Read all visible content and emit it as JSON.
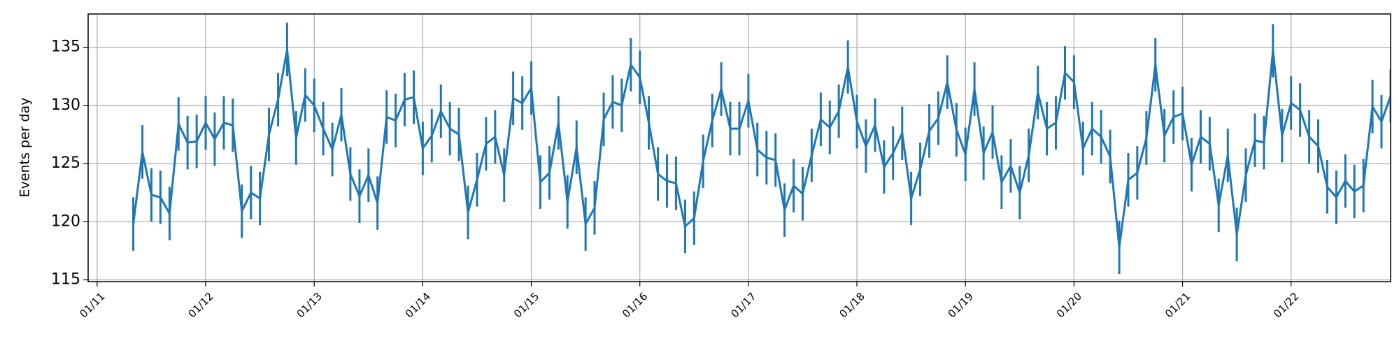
{
  "chart_data": {
    "type": "line",
    "y_label": "Events per day",
    "color": "#1f77b4",
    "grid": true,
    "x": [
      11.333,
      11.417,
      11.5,
      11.583,
      11.667,
      11.75,
      11.833,
      11.917,
      12,
      12.083,
      12.167,
      12.25,
      12.333,
      12.417,
      12.5,
      12.583,
      12.667,
      12.75,
      12.833,
      12.917,
      13,
      13.083,
      13.167,
      13.25,
      13.333,
      13.417,
      13.5,
      13.583,
      13.667,
      13.75,
      13.833,
      13.917,
      14,
      14.083,
      14.167,
      14.25,
      14.333,
      14.417,
      14.5,
      14.583,
      14.667,
      14.75,
      14.833,
      14.917,
      15,
      15.083,
      15.167,
      15.25,
      15.333,
      15.417,
      15.5,
      15.583,
      15.667,
      15.75,
      15.833,
      15.917,
      16,
      16.083,
      16.167,
      16.25,
      16.333,
      16.417,
      16.5,
      16.583,
      16.667,
      16.75,
      16.833,
      16.917,
      17,
      17.083,
      17.167,
      17.25,
      17.333,
      17.417,
      17.5,
      17.583,
      17.667,
      17.75,
      17.833,
      17.917,
      18,
      18.083,
      18.167,
      18.25,
      18.333,
      18.417,
      18.5,
      18.583,
      18.667,
      18.75,
      18.833,
      18.917,
      19,
      19.083,
      19.167,
      19.25,
      19.333,
      19.417,
      19.5,
      19.583,
      19.667,
      19.75,
      19.833,
      19.917,
      20,
      20.083,
      20.167,
      20.25,
      20.333,
      20.417,
      20.5,
      20.583,
      20.667,
      20.75,
      20.833,
      20.917,
      21,
      21.083,
      21.167,
      21.25,
      21.333,
      21.417,
      21.5,
      21.583,
      21.667,
      21.75,
      21.833,
      21.917,
      22,
      22.083,
      22.167,
      22.25,
      22.333,
      22.417,
      22.5,
      22.583,
      22.667,
      22.75,
      22.833,
      22.917
    ],
    "values": [
      119.8,
      126,
      122.3,
      122.1,
      120.7,
      128.4,
      126.8,
      126.9,
      128.5,
      127.1,
      128.5,
      128.3,
      120.9,
      122.5,
      122.0,
      127.5,
      130.5,
      134.8,
      127.2,
      130.9,
      130.0,
      128.0,
      126.2,
      129.2,
      124.1,
      122.2,
      124.0,
      121.6,
      129.0,
      128.7,
      130.5,
      130.7,
      126.3,
      127.4,
      129.5,
      128.0,
      127.5,
      120.8,
      123.6,
      126.7,
      127.3,
      124.0,
      130.6,
      130.2,
      131.5,
      123.4,
      124.2,
      128.5,
      121.7,
      126.4,
      119.8,
      121.2,
      128.8,
      130.3,
      130.0,
      133.5,
      132.4,
      128.5,
      124.1,
      123.5,
      123.3,
      119.6,
      120.3,
      125.2,
      128.7,
      131.4,
      128.0,
      128.0,
      130.4,
      126.2,
      125.5,
      125.3,
      121.0,
      123.1,
      122.4,
      125.7,
      128.8,
      128.1,
      129.5,
      133.3,
      128.6,
      126.5,
      128.3,
      124.7,
      125.9,
      127.6,
      122.0,
      124.5,
      127.8,
      128.9,
      132.0,
      127.9,
      125.8,
      131.4,
      125.9,
      127.7,
      123.4,
      124.8,
      122.5,
      125.7,
      131.1,
      128.0,
      128.5,
      132.8,
      132.0,
      126.3,
      128.0,
      127.3,
      125.6,
      117.8,
      123.6,
      124.2,
      127.2,
      133.5,
      127.4,
      129.0,
      129.3,
      124.9,
      127.3,
      126.7,
      121.4,
      125.7,
      118.9,
      124.0,
      127.0,
      126.8,
      134.7,
      127.4,
      130.2,
      129.6,
      127.3,
      126.5,
      123.0,
      122.1,
      123.5,
      122.6,
      123.1,
      129.9,
      128.6,
      130.8
    ],
    "yerr": [
      2.3,
      2.3,
      2.3,
      2.3,
      2.3,
      2.3,
      2.3,
      2.3,
      2.3,
      2.3,
      2.3,
      2.3,
      2.3,
      2.3,
      2.3,
      2.3,
      2.3,
      2.3,
      2.3,
      2.3,
      2.3,
      2.3,
      2.3,
      2.3,
      2.3,
      2.3,
      2.3,
      2.3,
      2.3,
      2.3,
      2.3,
      2.3,
      2.3,
      2.3,
      2.3,
      2.3,
      2.3,
      2.3,
      2.3,
      2.3,
      2.3,
      2.3,
      2.3,
      2.3,
      2.3,
      2.3,
      2.3,
      2.3,
      2.3,
      2.3,
      2.3,
      2.3,
      2.3,
      2.3,
      2.3,
      2.3,
      2.3,
      2.3,
      2.3,
      2.3,
      2.3,
      2.3,
      2.3,
      2.3,
      2.3,
      2.3,
      2.3,
      2.3,
      2.3,
      2.3,
      2.3,
      2.3,
      2.3,
      2.3,
      2.3,
      2.3,
      2.3,
      2.3,
      2.3,
      2.3,
      2.3,
      2.3,
      2.3,
      2.3,
      2.3,
      2.3,
      2.3,
      2.3,
      2.3,
      2.3,
      2.3,
      2.3,
      2.3,
      2.3,
      2.3,
      2.3,
      2.3,
      2.3,
      2.3,
      2.3,
      2.3,
      2.3,
      2.3,
      2.3,
      2.3,
      2.3,
      2.3,
      2.3,
      2.3,
      2.3,
      2.3,
      2.3,
      2.3,
      2.3,
      2.3,
      2.3,
      2.3,
      2.3,
      2.3,
      2.3,
      2.3,
      2.3,
      2.3,
      2.3,
      2.3,
      2.3,
      2.3,
      2.3,
      2.3,
      2.3,
      2.3,
      2.3,
      2.3,
      2.3,
      2.3,
      2.3,
      2.3,
      2.3,
      2.3,
      2.3
    ],
    "xlim": [
      10.917,
      22.917
    ],
    "xticks": [
      {
        "value": 11,
        "label": "01/11"
      },
      {
        "value": 12,
        "label": "01/12"
      },
      {
        "value": 13,
        "label": "01/13"
      },
      {
        "value": 14,
        "label": "01/14"
      },
      {
        "value": 15,
        "label": "01/15"
      },
      {
        "value": 16,
        "label": "01/16"
      },
      {
        "value": 17,
        "label": "01/17"
      },
      {
        "value": 18,
        "label": "01/18"
      },
      {
        "value": 19,
        "label": "01/19"
      },
      {
        "value": 20,
        "label": "01/20"
      },
      {
        "value": 21,
        "label": "01/21"
      },
      {
        "value": 22,
        "label": "01/22"
      }
    ],
    "ylim": [
      114.85,
      137.86
    ],
    "yticks": [
      115,
      120,
      125,
      130,
      135
    ]
  }
}
